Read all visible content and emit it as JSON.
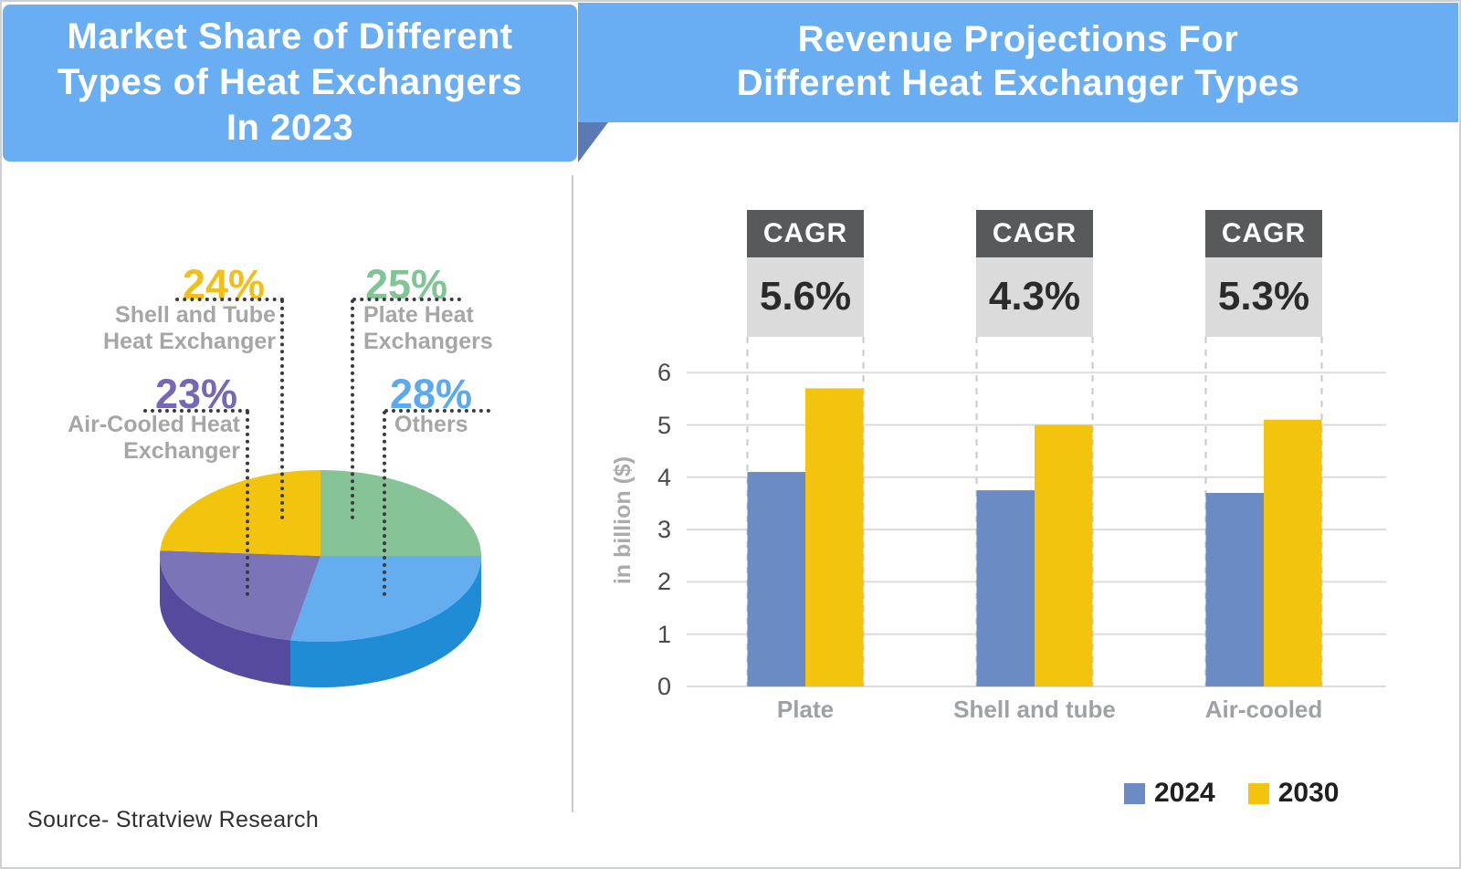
{
  "left_panel": {
    "title_lines": [
      "Market Share of Different",
      "Types of Heat Exchangers",
      "In 2023"
    ]
  },
  "right_panel": {
    "title_lines": [
      "Revenue Projections For",
      "Different Heat Exchanger Types"
    ]
  },
  "source": "Source- Stratview Research",
  "colors": {
    "banner_bg": "#69ADF2",
    "banner_fold": "#5B7AB4",
    "banner_text": "#FFFFFF",
    "divider": "#C8CCD0",
    "callout_line": "#3A3A3A",
    "callout_label_text": "#A6A6A6",
    "grid_line": "#DCDCDC",
    "guide_dash": "#C9C9C9",
    "tick_text": "#4A4A4A",
    "category_text": "#9EA2A6",
    "cagr_header_bg": "#58595B",
    "cagr_header_text": "#FFFFFF",
    "cagr_body_bg": "#DBDBDB",
    "cagr_body_text": "#2B2B2B",
    "legend_text": "#202020",
    "source_text": "#303030"
  },
  "chart_data": [
    {
      "type": "pie",
      "style": "3d",
      "title": "Market Share of Different Types of Heat Exchangers In 2023",
      "start_angle_deg": 0,
      "clockwise": true,
      "slices": [
        {
          "label": "Plate Heat\nExchangers",
          "value": 25,
          "pct_label": "25%",
          "color": "#86C396",
          "text_color": "#82C495"
        },
        {
          "label": "Others",
          "value": 28,
          "pct_label": "28%",
          "color": "#64AEF0",
          "side_color": "#1F8CD5",
          "text_color": "#5BA9EE"
        },
        {
          "label": "Air-Cooled Heat\nExchanger",
          "value": 23,
          "pct_label": "23%",
          "color": "#7B74B9",
          "side_color": "#554A9D",
          "text_color": "#7668B2"
        },
        {
          "label": "Shell and Tube\nHeat Exchanger",
          "value": 24,
          "pct_label": "24%",
          "color": "#F2C40D",
          "text_color": "#F0C019"
        }
      ]
    },
    {
      "type": "bar",
      "title": "Revenue Projections For Different Heat Exchanger Types",
      "categories": [
        "Plate",
        "Shell and tube",
        "Air-cooled"
      ],
      "series": [
        {
          "name": "2024",
          "color": "#6A8BC3",
          "values": [
            4.1,
            3.75,
            3.7
          ]
        },
        {
          "name": "2030",
          "color": "#F2C40D",
          "values": [
            5.7,
            5.0,
            5.1
          ]
        }
      ],
      "cagr_label": "CAGR",
      "cagr": [
        "5.6%",
        "4.3%",
        "5.3%"
      ],
      "ylabel": "in billion ($)",
      "ylim": [
        0,
        6
      ],
      "yticks": [
        0,
        1,
        2,
        3,
        4,
        5,
        6
      ],
      "grid": true,
      "legend_position": "bottom-right"
    }
  ]
}
